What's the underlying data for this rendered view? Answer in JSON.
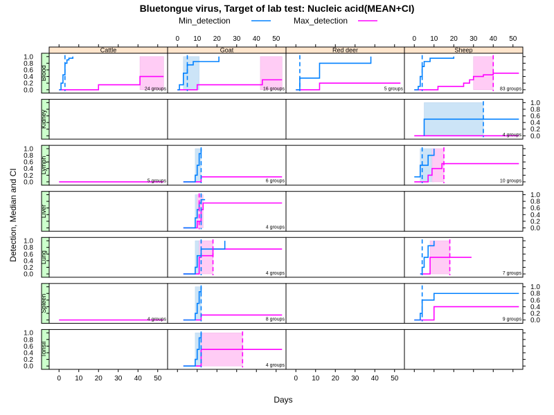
{
  "chart_data": {
    "type": "line",
    "title": "Bluetongue virus, Target of lab test: Nucleic acid(MEAN+CI)",
    "xlabel": "Days",
    "ylabel": "Detection, Median and CI",
    "xlim": [
      -5,
      55
    ],
    "ylim": [
      -0.1,
      1.1
    ],
    "xticks": [
      0,
      10,
      20,
      30,
      40,
      50
    ],
    "yticks": [
      0,
      0.2,
      0.4,
      0.6,
      0.8,
      1
    ],
    "ytick_labels": [
      "0.0",
      "0.2",
      "0.4",
      "0.6",
      "0.8",
      "1.0"
    ],
    "legend": [
      {
        "name": "Min_detection",
        "color": "#0080ff"
      },
      {
        "name": "Max_detection",
        "color": "#ff00ff"
      }
    ],
    "columns": [
      "Cattle",
      "Goat",
      "Red deer",
      "Sheep"
    ],
    "rows": [
      "Blood",
      "Kidney",
      "Lymph",
      "Liver",
      "Lung",
      "Spleen",
      "Tonsil"
    ],
    "colors": {
      "min": "#0080ff",
      "max": "#ff00ff",
      "min_band": "#cce4f7",
      "max_band": "#ffccf5",
      "strip_col": "#ffe5cc",
      "strip_row": "#ccffcc"
    },
    "panels": [
      {
        "row": "Blood",
        "col": "Cattle",
        "groups": "24 groups",
        "min": [
          [
            0,
            0
          ],
          [
            1,
            0.2
          ],
          [
            2,
            0.45
          ],
          [
            3,
            0.8
          ],
          [
            4,
            0.9
          ],
          [
            5,
            0.95
          ],
          [
            7,
            1.0
          ]
        ],
        "max": [
          [
            0,
            0
          ],
          [
            20,
            0
          ],
          [
            20,
            0.15
          ],
          [
            41,
            0.15
          ],
          [
            41,
            0.4
          ],
          [
            53,
            0.4
          ]
        ],
        "min_ci": [],
        "max_ci": [
          [
            41,
            53
          ]
        ],
        "min_med": 3,
        "max_med": null
      },
      {
        "row": "Blood",
        "col": "Goat",
        "groups": "16 groups",
        "min": [
          [
            0,
            0
          ],
          [
            1,
            0.15
          ],
          [
            3,
            0.5
          ],
          [
            5,
            0.75
          ],
          [
            8,
            0.85
          ],
          [
            21,
            0.85
          ],
          [
            21,
            1.0
          ]
        ],
        "max": [
          [
            0,
            0
          ],
          [
            10,
            0
          ],
          [
            10,
            0.15
          ],
          [
            43,
            0.15
          ],
          [
            43,
            0.3
          ],
          [
            53,
            0.3
          ]
        ],
        "min_ci": [
          [
            3,
            11
          ]
        ],
        "max_ci": [
          [
            42,
            53
          ]
        ],
        "min_med": 5,
        "max_med": null
      },
      {
        "row": "Blood",
        "col": "Red deer",
        "groups": "5 groups",
        "min": [
          [
            0,
            0
          ],
          [
            2,
            0
          ],
          [
            2,
            0.35
          ],
          [
            12,
            0.35
          ],
          [
            12,
            0.8
          ],
          [
            38,
            0.8
          ],
          [
            38,
            1.0
          ]
        ],
        "max": [
          [
            0,
            0
          ],
          [
            12,
            0
          ],
          [
            12,
            0.2
          ],
          [
            53,
            0.2
          ]
        ],
        "min_ci": [],
        "max_ci": [],
        "min_med": 2,
        "max_med": null
      },
      {
        "row": "Blood",
        "col": "Sheep",
        "groups": "83 groups",
        "min": [
          [
            0,
            0
          ],
          [
            2,
            0.1
          ],
          [
            3,
            0.4
          ],
          [
            4,
            0.7
          ],
          [
            5,
            0.85
          ],
          [
            8,
            0.95
          ],
          [
            20,
            1.0
          ]
        ],
        "max": [
          [
            0,
            0
          ],
          [
            12,
            0
          ],
          [
            12,
            0.1
          ],
          [
            25,
            0.2
          ],
          [
            28,
            0.3
          ],
          [
            30,
            0.4
          ],
          [
            35,
            0.45
          ],
          [
            40,
            0.5
          ],
          [
            53,
            0.5
          ]
        ],
        "min_ci": [],
        "max_ci": [
          [
            30,
            40
          ]
        ],
        "min_med": 4,
        "max_med": 40
      },
      {
        "row": "Kidney",
        "col": "Sheep",
        "groups": "4 groups",
        "min": [
          [
            5,
            0
          ],
          [
            5,
            0.5
          ],
          [
            53,
            0.5
          ]
        ],
        "max": [
          [
            0,
            0
          ],
          [
            53,
            0
          ]
        ],
        "min_ci": [
          [
            5,
            35
          ]
        ],
        "max_ci": [],
        "min_med": 35,
        "max_med": null
      },
      {
        "row": "Lymph",
        "col": "Cattle",
        "groups": "5 groups",
        "min": [],
        "max": [
          [
            0,
            0
          ],
          [
            53,
            0
          ]
        ],
        "min_ci": [],
        "max_ci": [],
        "min_med": null,
        "max_med": null
      },
      {
        "row": "Lymph",
        "col": "Goat",
        "groups": "6 groups",
        "min": [
          [
            3,
            0
          ],
          [
            9,
            0
          ],
          [
            9,
            0.2
          ],
          [
            10,
            0.5
          ],
          [
            11,
            0.85
          ],
          [
            12,
            1.0
          ]
        ],
        "max": [
          [
            3,
            0
          ],
          [
            12,
            0
          ],
          [
            12,
            0.15
          ],
          [
            53,
            0.15
          ]
        ],
        "min_ci": [
          [
            9,
            12
          ]
        ],
        "max_ci": [],
        "min_med": 12,
        "max_med": null
      },
      {
        "row": "Lymph",
        "col": "Sheep",
        "groups": "10 groups",
        "min": [
          [
            0,
            0.15
          ],
          [
            3,
            0.15
          ],
          [
            3,
            0.5
          ],
          [
            7,
            0.8
          ],
          [
            10,
            1.0
          ]
        ],
        "max": [
          [
            0,
            0
          ],
          [
            7,
            0
          ],
          [
            7,
            0.2
          ],
          [
            9,
            0.4
          ],
          [
            14,
            0.4
          ],
          [
            14,
            0.55
          ],
          [
            53,
            0.55
          ]
        ],
        "min_ci": [
          [
            3,
            10
          ]
        ],
        "max_ci": [
          [
            9,
            15
          ]
        ],
        "min_med": 4,
        "max_med": 15
      },
      {
        "row": "Liver",
        "col": "Goat",
        "groups": "4 groups",
        "min": [
          [
            3,
            0
          ],
          [
            9,
            0
          ],
          [
            9,
            0.3
          ],
          [
            10,
            0.55
          ],
          [
            11,
            0.75
          ],
          [
            12,
            0.85
          ],
          [
            14,
            0.85
          ]
        ],
        "max": [
          [
            3,
            0
          ],
          [
            10,
            0
          ],
          [
            10,
            0.2
          ],
          [
            12,
            0.55
          ],
          [
            13,
            0.75
          ],
          [
            53,
            0.75
          ]
        ],
        "min_ci": [
          [
            9,
            12
          ]
        ],
        "max_ci": [
          [
            10,
            13
          ]
        ],
        "min_med": 12,
        "max_med": 11
      },
      {
        "row": "Lung",
        "col": "Goat",
        "groups": "4 groups",
        "min": [
          [
            3,
            0
          ],
          [
            9,
            0
          ],
          [
            9,
            0.2
          ],
          [
            10,
            0.55
          ],
          [
            12,
            0.75
          ],
          [
            24,
            0.75
          ],
          [
            24,
            1.0
          ]
        ],
        "max": [
          [
            3,
            0
          ],
          [
            11,
            0
          ],
          [
            11,
            0.5
          ],
          [
            12,
            0.55
          ],
          [
            18,
            0.55
          ],
          [
            18,
            0.75
          ],
          [
            53,
            0.75
          ]
        ],
        "min_ci": [
          [
            9,
            12
          ]
        ],
        "max_ci": [
          [
            11,
            18
          ]
        ],
        "min_med": 12,
        "max_med": 18
      },
      {
        "row": "Lung",
        "col": "Sheep",
        "groups": "7 groups",
        "min": [
          [
            3,
            0
          ],
          [
            4,
            0
          ],
          [
            4,
            0.2
          ],
          [
            5,
            0.5
          ],
          [
            7,
            0.85
          ],
          [
            10,
            1.0
          ]
        ],
        "max": [
          [
            3,
            0
          ],
          [
            8,
            0
          ],
          [
            8,
            0.5
          ],
          [
            29,
            0.5
          ]
        ],
        "min_ci": [],
        "max_ci": [
          [
            8,
            18
          ]
        ],
        "min_med": 4,
        "max_med": 18
      },
      {
        "row": "Spleen",
        "col": "Cattle",
        "groups": "4 groups",
        "min": [],
        "max": [
          [
            0,
            0
          ],
          [
            53,
            0
          ]
        ],
        "min_ci": [],
        "max_ci": [],
        "min_med": null,
        "max_med": null
      },
      {
        "row": "Spleen",
        "col": "Goat",
        "groups": "8 groups",
        "min": [
          [
            3,
            0
          ],
          [
            9,
            0
          ],
          [
            9,
            0.2
          ],
          [
            10,
            0.5
          ],
          [
            11,
            0.85
          ],
          [
            12,
            1.0
          ]
        ],
        "max": [
          [
            3,
            0
          ],
          [
            12,
            0
          ],
          [
            12,
            0.15
          ],
          [
            53,
            0.15
          ]
        ],
        "min_ci": [
          [
            9,
            12
          ]
        ],
        "max_ci": [],
        "min_med": 12,
        "max_med": null
      },
      {
        "row": "Spleen",
        "col": "Sheep",
        "groups": "9 groups",
        "min": [
          [
            0,
            0
          ],
          [
            3,
            0
          ],
          [
            3,
            0.2
          ],
          [
            4,
            0.6
          ],
          [
            10,
            0.6
          ],
          [
            10,
            0.8
          ],
          [
            53,
            0.8
          ]
        ],
        "max": [
          [
            0,
            0
          ],
          [
            10,
            0
          ],
          [
            10,
            0.4
          ],
          [
            53,
            0.4
          ]
        ],
        "min_ci": [],
        "max_ci": [],
        "min_med": 4,
        "max_med": null
      },
      {
        "row": "Tonsil",
        "col": "Goat",
        "groups": "4 groups",
        "min": [
          [
            3,
            0
          ],
          [
            9,
            0
          ],
          [
            9,
            0.2
          ],
          [
            10,
            0.5
          ],
          [
            11,
            0.85
          ],
          [
            12,
            1.0
          ]
        ],
        "max": [
          [
            3,
            0
          ],
          [
            12,
            0
          ],
          [
            12,
            0.5
          ],
          [
            53,
            0.5
          ]
        ],
        "min_ci": [
          [
            9,
            12
          ]
        ],
        "max_ci": [
          [
            12,
            33
          ]
        ],
        "min_med": 12,
        "max_med": 33
      }
    ]
  }
}
